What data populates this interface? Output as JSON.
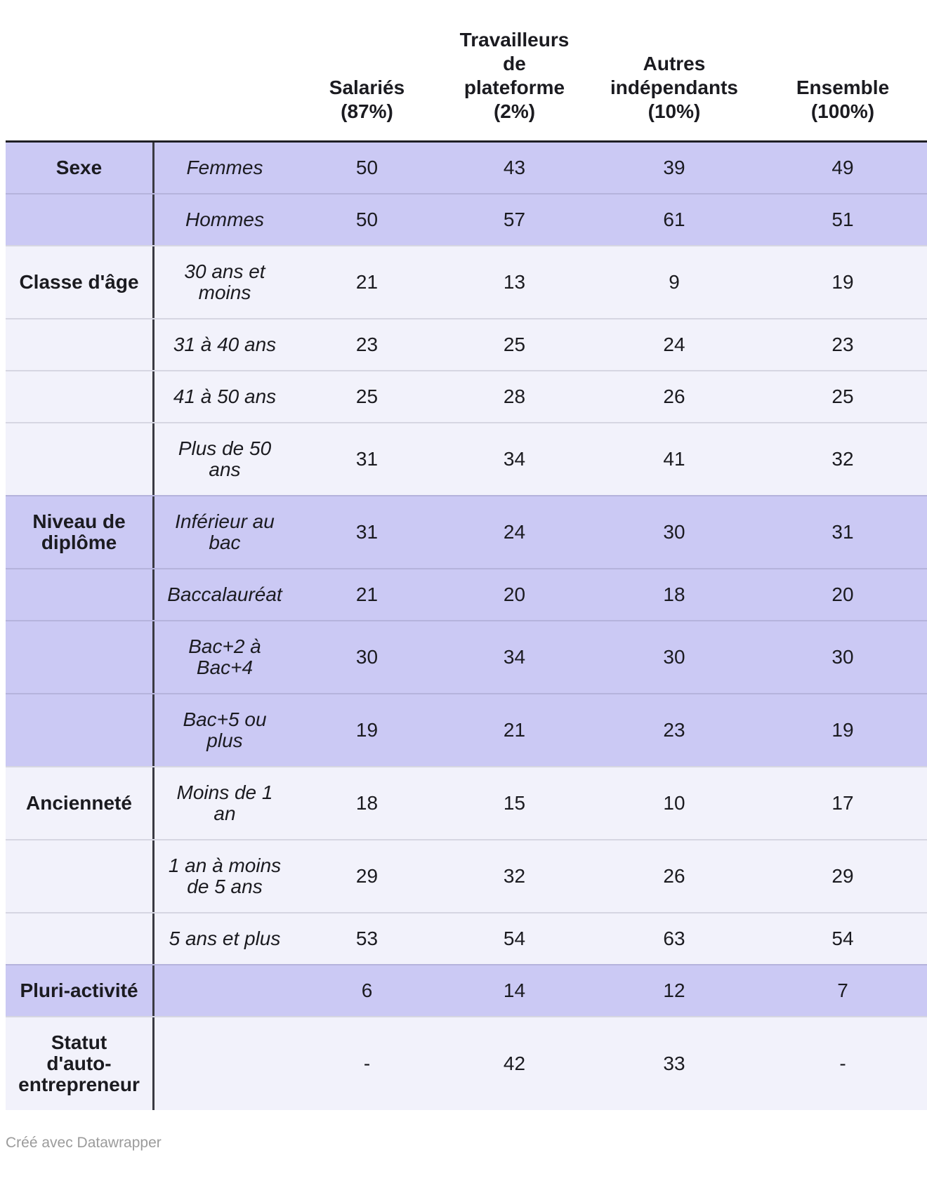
{
  "chart_data": {
    "type": "table",
    "columns": [
      "",
      "",
      "Salariés (87%)",
      "Travailleurs de plateforme (2%)",
      "Autres indépendants (10%)",
      "Ensemble (100%)"
    ],
    "rows": [
      [
        "Sexe",
        "Femmes",
        50,
        43,
        39,
        49
      ],
      [
        "",
        "Hommes",
        50,
        57,
        61,
        51
      ],
      [
        "Classe d'âge",
        "30 ans et moins",
        21,
        13,
        9,
        19
      ],
      [
        "",
        "31 à 40 ans",
        23,
        25,
        24,
        23
      ],
      [
        "",
        "41 à 50 ans",
        25,
        28,
        26,
        25
      ],
      [
        "",
        "Plus de 50 ans",
        31,
        34,
        41,
        32
      ],
      [
        "Niveau de diplôme",
        "Inférieur au bac",
        31,
        24,
        30,
        31
      ],
      [
        "",
        "Baccalauréat",
        21,
        20,
        18,
        20
      ],
      [
        "",
        "Bac+2 à Bac+4",
        30,
        34,
        30,
        30
      ],
      [
        "",
        "Bac+5 ou plus",
        19,
        21,
        23,
        19
      ],
      [
        "Ancienneté",
        "Moins de 1 an",
        18,
        15,
        10,
        17
      ],
      [
        "",
        "1 an à moins de 5 ans",
        29,
        32,
        26,
        29
      ],
      [
        "",
        "5 ans et plus",
        53,
        54,
        63,
        54
      ],
      [
        "Pluri-activité",
        "",
        6,
        14,
        12,
        7
      ],
      [
        "Statut d'auto-entrepreneur",
        "",
        "-",
        42,
        33,
        "-"
      ]
    ],
    "layout_hints": {
      "row_group_shading": [
        "med",
        "light",
        "med",
        "light",
        "med",
        "light"
      ],
      "last_column_clipped_at_right_edge": true
    }
  },
  "header": {
    "columns": [
      "Salariés\n(87%)",
      "Travailleurs\nde\nplateforme\n(2%)",
      "Autres\nindépendants\n(10%)",
      "Ensemble\n(100%)"
    ]
  },
  "table": {
    "groups": [
      {
        "label": "Sexe",
        "rows": [
          {
            "label": "Femmes",
            "values": [
              "50",
              "43",
              "39",
              "49"
            ]
          },
          {
            "label": "Hommes",
            "values": [
              "50",
              "57",
              "61",
              "51"
            ]
          }
        ]
      },
      {
        "label": "Classe d'âge",
        "rows": [
          {
            "label": "30 ans et\nmoins",
            "values": [
              "21",
              "13",
              "9",
              "19"
            ]
          },
          {
            "label": "31 à 40 ans",
            "values": [
              "23",
              "25",
              "24",
              "23"
            ]
          },
          {
            "label": "41 à 50 ans",
            "values": [
              "25",
              "28",
              "26",
              "25"
            ]
          },
          {
            "label": "Plus de 50\nans",
            "values": [
              "31",
              "34",
              "41",
              "32"
            ]
          }
        ]
      },
      {
        "label": "Niveau de\ndiplôme",
        "rows": [
          {
            "label": "Inférieur au\nbac",
            "values": [
              "31",
              "24",
              "30",
              "31"
            ]
          },
          {
            "label": "Baccalauréat",
            "values": [
              "21",
              "20",
              "18",
              "20"
            ]
          },
          {
            "label": "Bac+2 à\nBac+4",
            "values": [
              "30",
              "34",
              "30",
              "30"
            ]
          },
          {
            "label": "Bac+5 ou\nplus",
            "values": [
              "19",
              "21",
              "23",
              "19"
            ]
          }
        ]
      },
      {
        "label": "Ancienneté",
        "rows": [
          {
            "label": "Moins de 1\nan",
            "values": [
              "18",
              "15",
              "10",
              "17"
            ]
          },
          {
            "label": "1 an à moins\nde 5 ans",
            "values": [
              "29",
              "32",
              "26",
              "29"
            ]
          },
          {
            "label": "5 ans et plus",
            "values": [
              "53",
              "54",
              "63",
              "54"
            ]
          }
        ]
      },
      {
        "label": "Pluri-activité",
        "rows": [
          {
            "label": "",
            "values": [
              "6",
              "14",
              "12",
              "7"
            ]
          }
        ]
      },
      {
        "label": "Statut\nd'auto-\nentrepreneur",
        "rows": [
          {
            "label": "",
            "values": [
              "-",
              "42",
              "33",
              "-"
            ]
          }
        ]
      }
    ]
  },
  "footer": {
    "credit": "Créé avec Datawrapper"
  },
  "colors": {
    "group_shade_strong": "#cbc9f4",
    "group_shade_light": "#f2f2fb",
    "top_border": "#1f1f24",
    "column_divider": "#3a3a42",
    "row_separator": "rgba(66,66,99,0.16)",
    "text": "#1b1b20",
    "credit_text": "#9b9b9b"
  }
}
